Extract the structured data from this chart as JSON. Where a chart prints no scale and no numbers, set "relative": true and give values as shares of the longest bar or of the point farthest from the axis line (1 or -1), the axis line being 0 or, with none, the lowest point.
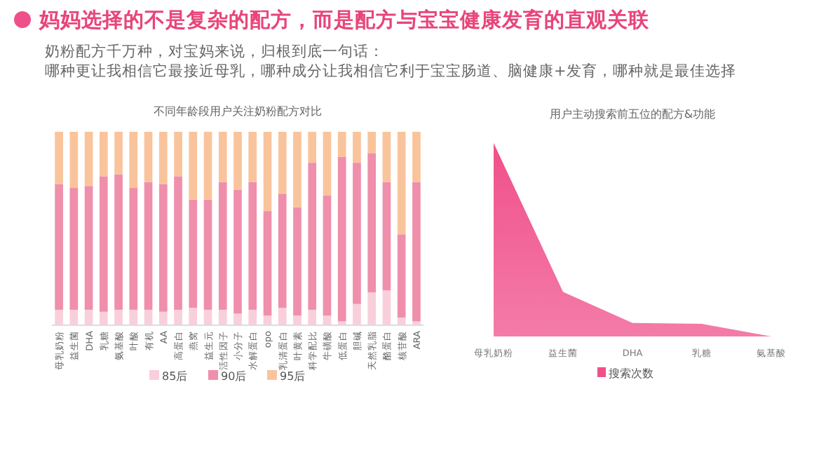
{
  "chart_data": [
    {
      "type": "other",
      "title": "妈妈选择的不是复杂的配方，而是配方与宝宝健康发育的直观关联",
      "subtitle": "奶粉配方千万种，对宝妈来说，归根到底一句话：",
      "annotations": [
        "哪种更让我相信它最接近母乳，哪种成分让我相信它利于宝宝肠道、脑健康+发育，哪种就是最佳选择"
      ]
    },
    {
      "type": "bar",
      "title": "不同年龄段用户关注奶粉配方对比",
      "stacked": true,
      "relative": true,
      "legend": "bottom",
      "categories": [
        "母乳奶粉",
        "益生菌",
        "DHA",
        "乳糖",
        "氨基酸",
        "叶酸",
        "有机",
        "AA",
        "高蛋白",
        "燕窝",
        "益生元",
        "活性因子",
        "小分子",
        "水解蛋白",
        "opo",
        "乳清蛋白",
        "叶黄素",
        "科学配比",
        "牛磺酸",
        "低蛋白",
        "胆碱",
        "天然乳脂",
        "酪蛋白",
        "核苷酸",
        "ARA"
      ],
      "series": [
        {
          "name": "85后",
          "color": "#f9cfdc",
          "values": [
            0.08,
            0.08,
            0.08,
            0.07,
            0.08,
            0.08,
            0.08,
            0.07,
            0.08,
            0.09,
            0.08,
            0.08,
            0.06,
            0.08,
            0.05,
            0.09,
            0.05,
            0.08,
            0.05,
            0.02,
            0.11,
            0.17,
            0.18,
            0.04,
            0.02
          ]
        },
        {
          "name": "90后",
          "color": "#ef8fac",
          "values": [
            0.65,
            0.63,
            0.64,
            0.7,
            0.7,
            0.63,
            0.66,
            0.66,
            0.69,
            0.56,
            0.57,
            0.66,
            0.64,
            0.66,
            0.54,
            0.59,
            0.56,
            0.76,
            0.62,
            0.85,
            0.73,
            0.72,
            0.56,
            0.43,
            0.72
          ]
        },
        {
          "name": "95后",
          "color": "#f9c49c",
          "values": [
            0.27,
            0.29,
            0.28,
            0.23,
            0.22,
            0.29,
            0.26,
            0.27,
            0.23,
            0.35,
            0.35,
            0.26,
            0.3,
            0.26,
            0.41,
            0.32,
            0.39,
            0.16,
            0.33,
            0.13,
            0.16,
            0.11,
            0.26,
            0.53,
            0.26
          ]
        }
      ]
    },
    {
      "type": "area",
      "title": "用户主动搜索前五位的配方&功能",
      "relative": true,
      "legend": "bottom",
      "categories": [
        "母乳奶粉",
        "益生菌",
        "DHA",
        "乳糖",
        "氨基酸"
      ],
      "series": [
        {
          "name": "搜索次数",
          "color": "#f0508a",
          "values": [
            1,
            0.23,
            0.07,
            0.065,
            0
          ]
        }
      ]
    }
  ]
}
